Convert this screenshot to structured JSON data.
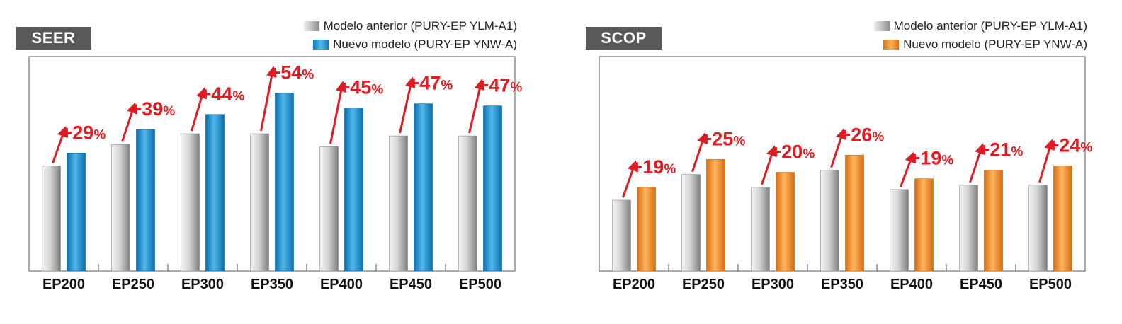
{
  "chart_data": [
    {
      "type": "bar",
      "title": "SEER",
      "categories": [
        "EP200",
        "EP250",
        "EP300",
        "EP350",
        "EP400",
        "EP450",
        "EP500"
      ],
      "series": [
        {
          "name": "Modelo anterior (PURY-EP YLM-A1)",
          "values": [
            4.9,
            5.9,
            6.4,
            6.4,
            5.8,
            6.3,
            6.3
          ]
        },
        {
          "name": "Nuevo modelo (PURY-EP YNW-A)",
          "values": [
            5.5,
            6.6,
            7.3,
            8.3,
            7.6,
            7.8,
            7.7
          ]
        }
      ],
      "annotations": [
        "+29%",
        "+39%",
        "+44%",
        "+54%",
        "+45%",
        "+47%",
        "+47%"
      ],
      "ylim": [
        0,
        10
      ],
      "grid": false,
      "legend_position": "top-right",
      "colors": {
        "old": "#9a9a9a",
        "new": "#1a8fd0",
        "annotation": "#e01b22",
        "title_bg": "#58595b"
      }
    },
    {
      "type": "bar",
      "title": "SCOP",
      "categories": [
        "EP200",
        "EP250",
        "EP300",
        "EP350",
        "EP400",
        "EP450",
        "EP500"
      ],
      "series": [
        {
          "name": "Modelo anterior (PURY-EP YLM-A1)",
          "values": [
            3.3,
            4.5,
            3.9,
            4.7,
            3.8,
            4.0,
            4.0
          ]
        },
        {
          "name": "Nuevo modelo (PURY-EP YNW-A)",
          "values": [
            3.9,
            5.2,
            4.6,
            5.4,
            4.3,
            4.7,
            4.9
          ]
        }
      ],
      "annotations": [
        "+19%",
        "+25%",
        "+20%",
        "+26%",
        "+19%",
        "+21%",
        "+24%"
      ],
      "ylim": [
        0,
        10
      ],
      "grid": false,
      "legend_position": "top-right",
      "colors": {
        "old": "#9a9a9a",
        "new": "#f0901f",
        "annotation": "#e01b22",
        "title_bg": "#58595b"
      }
    }
  ]
}
